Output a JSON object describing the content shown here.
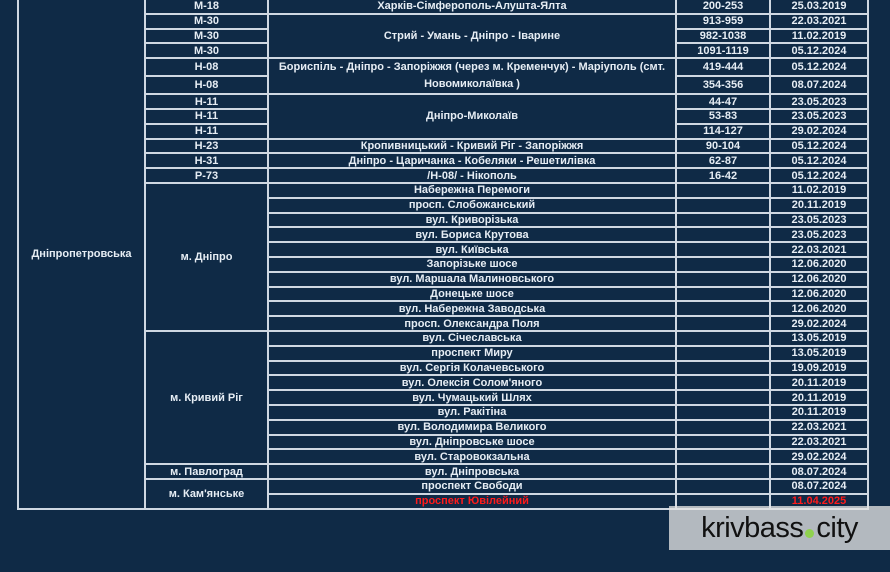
{
  "region": "Дніпропетровська",
  "highway_groups": [
    {
      "location": "Харків-Сімферополь-Алушта-Ялта",
      "segments": [
        {
          "road": "М-18",
          "km": "200-253",
          "date": "25.03.2019"
        }
      ]
    },
    {
      "location": "Стрий - Умань - Дніпро - Іваринe",
      "segments": [
        {
          "road": "М-30",
          "km": "913-959",
          "date": "22.03.2021"
        },
        {
          "road": "М-30",
          "km": "982-1038",
          "date": "11.02.2019"
        },
        {
          "road": "М-30",
          "km": "1091-1119",
          "date": "05.12.2024"
        }
      ]
    },
    {
      "location": "Бориспіль - Дніпро - Запоріжжя (через м. Кременчук) - Маріуполь (смт. Новомиколаївка )",
      "segments": [
        {
          "road": "Н-08",
          "km": "419-444",
          "date": "05.12.2024"
        },
        {
          "road": "Н-08",
          "km": "354-356",
          "date": "08.07.2024"
        }
      ]
    },
    {
      "location": "Дніпро-Миколаїв",
      "segments": [
        {
          "road": "Н-11",
          "km": "44-47",
          "date": "23.05.2023"
        },
        {
          "road": "Н-11",
          "km": "53-83",
          "date": "23.05.2023"
        },
        {
          "road": "Н-11",
          "km": "114-127",
          "date": "29.02.2024"
        }
      ]
    },
    {
      "location": "Кропивницький - Кривий Ріг - Запоріжжя",
      "segments": [
        {
          "road": "Н-23",
          "km": "90-104",
          "date": "05.12.2024"
        }
      ]
    },
    {
      "location": "Дніпро - Царичанка - Кобеляки - Решетилівка",
      "segments": [
        {
          "road": "Н-31",
          "km": "62-87",
          "date": "05.12.2024"
        }
      ]
    },
    {
      "location": "/Н-08/ - Нікополь",
      "segments": [
        {
          "road": "Р-73",
          "km": "16-42",
          "date": "05.12.2024"
        }
      ]
    }
  ],
  "city_groups": [
    {
      "city": "м. Дніпро",
      "streets": [
        {
          "name": "Набережна Перемоги",
          "date": "11.02.2019"
        },
        {
          "name": "просп. Слобожанський",
          "date": "20.11.2019"
        },
        {
          "name": "вул. Криворізька",
          "date": "23.05.2023"
        },
        {
          "name": "вул. Бориса Крутова",
          "date": "23.05.2023"
        },
        {
          "name": "вул. Київська",
          "date": "22.03.2021"
        },
        {
          "name": "Запорізьке шосе",
          "date": "12.06.2020"
        },
        {
          "name": "вул. Маршала Малиновського",
          "date": "12.06.2020"
        },
        {
          "name": "Донецьке шосе",
          "date": "12.06.2020"
        },
        {
          "name": "вул. Набережна Заводська",
          "date": "12.06.2020"
        },
        {
          "name": "просп. Олександра Поля",
          "date": "29.02.2024"
        }
      ]
    },
    {
      "city": "м. Кривий Ріг",
      "streets": [
        {
          "name": "вул. Січеславська",
          "date": "13.05.2019"
        },
        {
          "name": "проспект Миру",
          "date": "13.05.2019"
        },
        {
          "name": "вул. Сергія Колачевського",
          "date": "19.09.2019"
        },
        {
          "name": "вул. Олексія Солом'яного",
          "date": "20.11.2019"
        },
        {
          "name": "вул. Чумацький Шлях",
          "date": "20.11.2019"
        },
        {
          "name": "вул. Ракітіна",
          "date": "20.11.2019"
        },
        {
          "name": "вул. Володимира Великого",
          "date": "22.03.2021"
        },
        {
          "name": "вул. Дніпровське шосе",
          "date": "22.03.2021"
        },
        {
          "name": "вул. Старовокзальна",
          "date": "29.02.2024"
        }
      ]
    },
    {
      "city": "м. Павлоград",
      "streets": [
        {
          "name": "вул. Дніпровська",
          "date": "08.07.2024"
        }
      ]
    },
    {
      "city": "м. Кам'янське",
      "streets": [
        {
          "name": "проспект Свободи",
          "date": "08.07.2024"
        },
        {
          "name": "проспект Ювілейний",
          "date": "11.04.2025",
          "highlight": true
        }
      ]
    }
  ],
  "colors": {
    "background": "#0f2a46",
    "grid": "#cfd8e2",
    "text": "#e6edf4",
    "highlight": "#ff1a1a"
  },
  "watermark": {
    "left": "krivbass",
    "right": "city"
  }
}
